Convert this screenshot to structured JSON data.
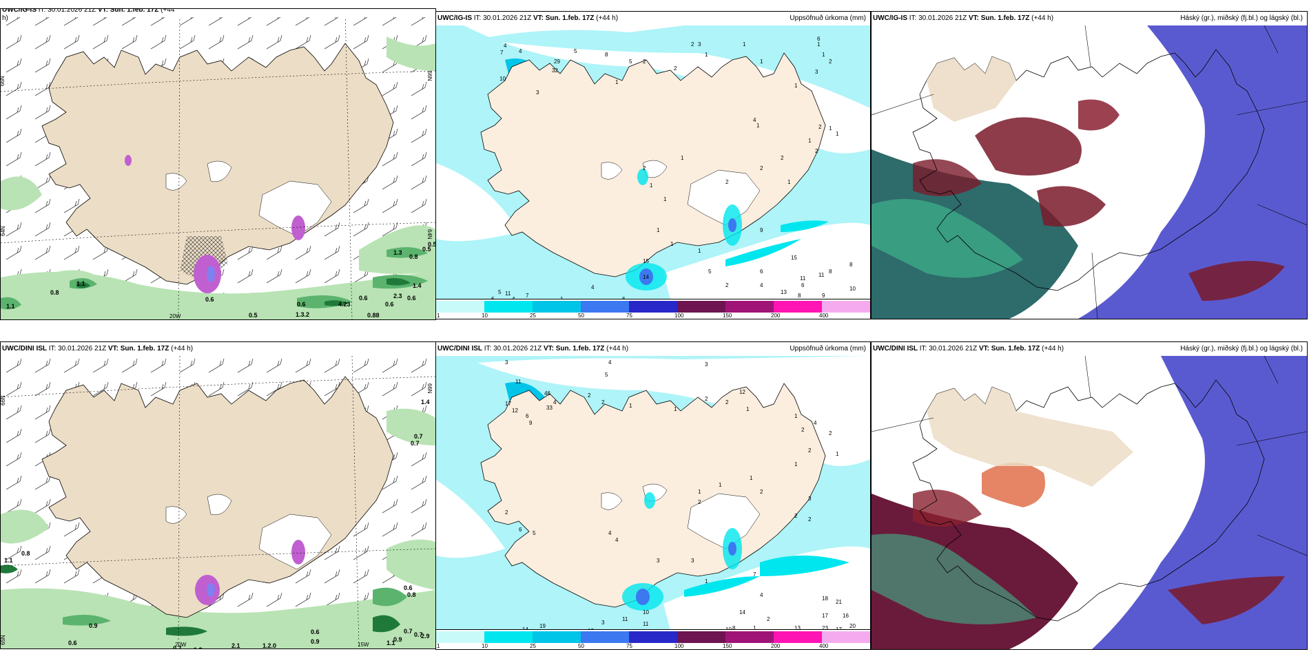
{
  "panels": {
    "top_wind": {
      "model": "UWC/IG-IS",
      "it": "IT: 30.01.2026 21Z",
      "vt_label": "VT:",
      "vt": "Sun. 1.feb. 17Z",
      "lead": "(+44",
      "lead2": "h)"
    },
    "top_precip": {
      "model": "UWC/IG-IS",
      "it": "IT: 30.01.2026 21Z",
      "vt_label": "VT:",
      "vt": "Sun. 1.feb. 17Z",
      "lead": "(+44 h)",
      "title": "Uppsöfnuð úrkoma (mm)"
    },
    "top_cloud": {
      "model": "UWC/IG-IS",
      "it": "IT: 30.01.2026 21Z",
      "vt_label": "VT:",
      "vt": "Sun. 1.feb. 17Z",
      "lead": "(+44 h)",
      "title": "Háský (gr.), miðský (fj.bl.) og lágský (bl.)"
    },
    "bot_wind": {
      "model": "UWC/DINI ISL",
      "it": "IT: 30.01.2026 21Z",
      "vt_label": "VT:",
      "vt": "Sun. 1.feb. 17Z",
      "lead": "(+44 h)"
    },
    "bot_precip": {
      "model": "UWC/DINI ISL",
      "it": "IT: 30.01.2026 21Z",
      "vt_label": "VT:",
      "vt": "Sun. 1.feb. 17Z",
      "lead": "(+44 h)",
      "title": "Uppsöfnuð úrkoma (mm)"
    },
    "bot_cloud": {
      "model": "UWC/DINI ISL",
      "it": "IT: 30.01.2026 21Z",
      "vt_label": "VT:",
      "vt": "Sun. 1.feb. 17Z",
      "lead": "(+44 h)",
      "title": "Háský (gr.), miðský (fj.bl.) og lágský (bl.)"
    }
  },
  "axis_labels": {
    "lat66": "66N",
    "lat65": "65N",
    "lat64": "64N",
    "lon20": "20W",
    "lon15": "15W"
  },
  "colorbar": {
    "ticks": [
      "1",
      "10",
      "25",
      "50",
      "75",
      "100",
      "150",
      "200",
      "400"
    ],
    "colors": [
      "#c8fafa",
      "#00e6ee",
      "#00c4e8",
      "#3c78f0",
      "#2828c8",
      "#6e1450",
      "#a01478",
      "#ff14b4",
      "#f5aaf0"
    ]
  },
  "wind_labels_top": [
    "1.1",
    "0.8",
    "1.1",
    "0.6",
    "0.6",
    "1.3.2",
    "4.23",
    "0.6",
    "0.5",
    "0.88",
    "0.6",
    "0.6",
    "0.5",
    "0.8",
    "1.3",
    "0.5",
    "1.4",
    "2.3"
  ],
  "wind_labels_bot": [
    "0.8",
    "1.1",
    "0.6",
    "0.9",
    "0.7",
    "1.2",
    "2.1",
    "1.2.0",
    "0.6",
    "0.9",
    "0.7",
    "0.7",
    "0.9",
    "1.1",
    "0.6",
    "0.7",
    "2.9",
    "1.4",
    "0.7",
    "0.8"
  ],
  "precip_labels_top": [
    "7",
    "10",
    "29",
    "32",
    "3",
    "4",
    "4",
    "5",
    "8",
    "5",
    "2",
    "2",
    "1",
    "2",
    "3",
    "1",
    "1",
    "1",
    "6",
    "1",
    "1",
    "2",
    "3",
    "1",
    "4",
    "1",
    "2",
    "1",
    "1",
    "1",
    "2",
    "2",
    "2",
    "1",
    "2",
    "1",
    "2",
    "1",
    "1",
    "1",
    "1",
    "1",
    "15",
    "14",
    "6",
    "4",
    "1",
    "7",
    "4",
    "5",
    "11",
    "6",
    "5",
    "6",
    "4",
    "2",
    "13",
    "14",
    "15",
    "13",
    "6",
    "15",
    "11",
    "11",
    "8",
    "8",
    "9",
    "8",
    "10",
    "9"
  ],
  "precip_labels_bot": [
    "3",
    "4",
    "3",
    "11",
    "17",
    "12",
    "46",
    "33",
    "6",
    "9",
    "5",
    "2",
    "4",
    "2",
    "1",
    "2",
    "1",
    "2",
    "12",
    "1",
    "1",
    "2",
    "4",
    "2",
    "1",
    "2",
    "1",
    "1",
    "1",
    "1",
    "2",
    "2",
    "2",
    "3",
    "2",
    "2",
    "6",
    "5",
    "4",
    "4",
    "3",
    "3",
    "1",
    "7",
    "4",
    "2",
    "1",
    "10",
    "7",
    "10",
    "11",
    "3",
    "14",
    "19",
    "12",
    "14",
    "17",
    "16",
    "20",
    "17",
    "18",
    "21",
    "23",
    "13",
    "19",
    "11",
    "8",
    "9"
  ]
}
